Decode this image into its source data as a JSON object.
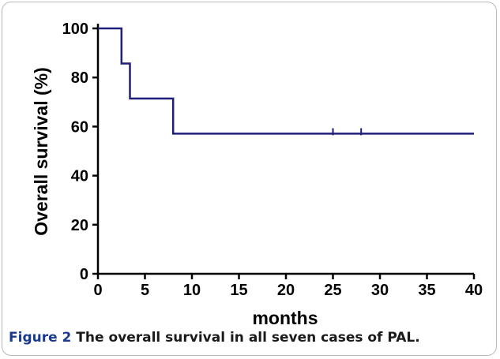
{
  "chart_data": {
    "type": "line",
    "xlabel": "months",
    "ylabel": "Overall survival (%)",
    "xlim": [
      0,
      40
    ],
    "ylim": [
      0,
      100
    ],
    "xticks": [
      0,
      5,
      10,
      15,
      20,
      25,
      30,
      35,
      40
    ],
    "yticks": [
      0,
      20,
      40,
      60,
      80,
      100
    ],
    "step": true,
    "series": [
      {
        "x": [
          0,
          2.5,
          2.5,
          3.4,
          3.4,
          8.0,
          8.0,
          40
        ],
        "y": [
          100,
          100,
          85.7,
          85.7,
          71.4,
          71.4,
          57.1,
          57.1
        ]
      }
    ],
    "censored": [
      {
        "x": 25,
        "y": 57.1
      },
      {
        "x": 28,
        "y": 57.1
      }
    ],
    "line_color": "#1f1f7a",
    "grid": false
  },
  "caption": {
    "label": "Figure 2",
    "text": " The overall survival in all seven cases of PAL."
  }
}
